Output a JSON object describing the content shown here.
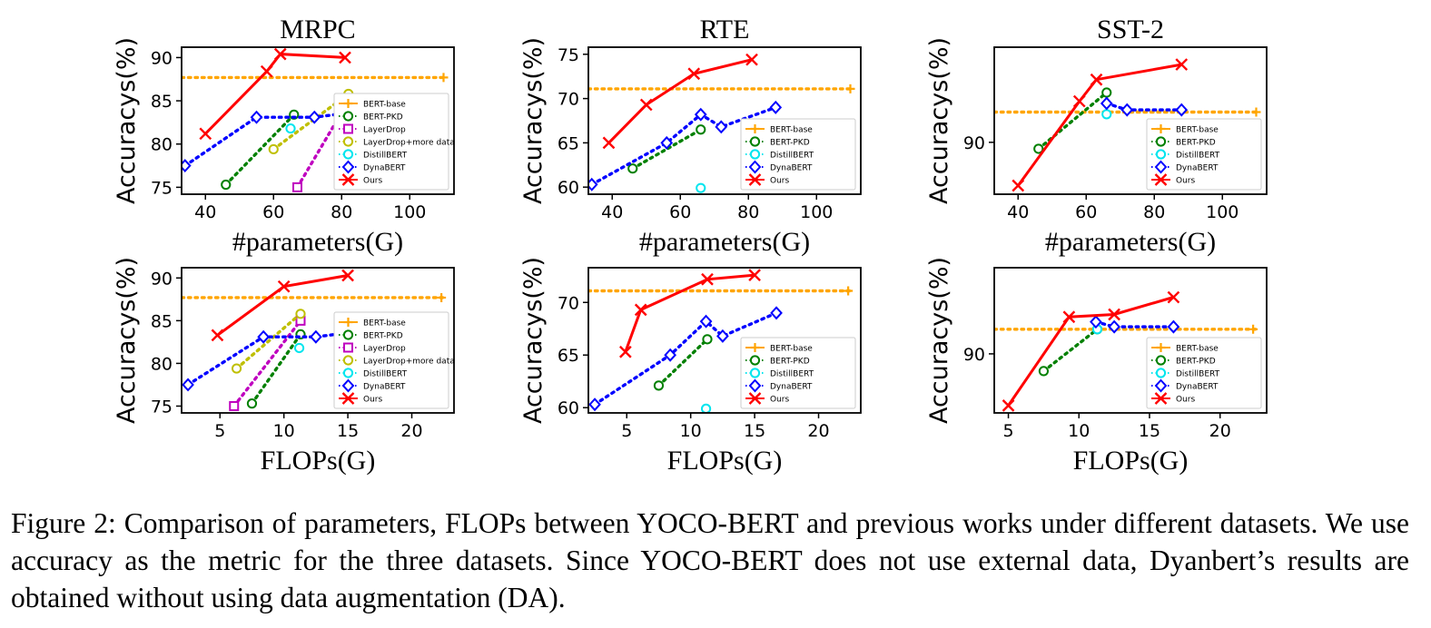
{
  "caption": "Figure 2: Comparison of parameters, FLOPs between YOCO-BERT and previous works under different datasets. We use accuracy as the metric for the three datasets. Since YOCO-BERT does not use external data, Dyanbert’s results are obtained without using data augmentation (DA).",
  "colors": {
    "BERT-base": "#ffa500",
    "BERT-PKD": "#008000",
    "LayerDrop": "#bf00bf",
    "LayerDrop+more data": "#bfbf00",
    "DistillBERT": "#00e5ee",
    "DynaBERT": "#0000ff",
    "Ours": "#ff0000"
  },
  "markers": {
    "BERT-base": "plus-marker",
    "BERT-PKD": "circle-marker",
    "LayerDrop": "square-marker",
    "LayerDrop+more data": "circle-marker",
    "DistillBERT": "circle-marker",
    "DynaBERT": "diamond-marker",
    "Ours": "x-marker"
  },
  "chart_data": [
    {
      "type": "line",
      "title": "MRPC",
      "xlabel": "#parameters(G)",
      "ylabel": "Accuracys(%)",
      "xlim": [
        33,
        113
      ],
      "ylim": [
        74.2,
        91.2
      ],
      "xticks": [
        40,
        60,
        80,
        100
      ],
      "yticks": [
        75,
        80,
        85,
        90
      ],
      "grid": false,
      "legend": "lower-right",
      "series": [
        {
          "name": "BERT-base",
          "x": [
            33,
            111
          ],
          "y": [
            87.7,
            87.7
          ]
        },
        {
          "name": "BERT-PKD",
          "x": [
            46,
            66
          ],
          "y": [
            75.3,
            83.4
          ]
        },
        {
          "name": "LayerDrop",
          "x": [
            67,
            82
          ],
          "y": [
            75.0,
            85.0
          ]
        },
        {
          "name": "LayerDrop+more data",
          "x": [
            60,
            82
          ],
          "y": [
            79.4,
            85.8
          ]
        },
        {
          "name": "DistillBERT",
          "x": [
            65
          ],
          "y": [
            81.8
          ]
        },
        {
          "name": "DynaBERT",
          "x": [
            34,
            55,
            72,
            88
          ],
          "y": [
            77.5,
            83.1,
            83.1,
            83.9
          ]
        },
        {
          "name": "Ours",
          "x": [
            40,
            58,
            62,
            81
          ],
          "y": [
            81.2,
            88.4,
            90.4,
            90.0
          ]
        }
      ]
    },
    {
      "type": "line",
      "title": "RTE",
      "xlabel": "#parameters(G)",
      "ylabel": "Accuracys(%)",
      "xlim": [
        33,
        113
      ],
      "ylim": [
        59.2,
        75.8
      ],
      "xticks": [
        40,
        60,
        80,
        100
      ],
      "yticks": [
        60,
        65,
        70,
        75
      ],
      "grid": false,
      "legend": "lower-right",
      "series": [
        {
          "name": "BERT-base",
          "x": [
            33,
            111
          ],
          "y": [
            71.1,
            71.1
          ]
        },
        {
          "name": "BERT-PKD",
          "x": [
            46,
            66
          ],
          "y": [
            62.1,
            66.5
          ]
        },
        {
          "name": "DistillBERT",
          "x": [
            66
          ],
          "y": [
            59.9
          ]
        },
        {
          "name": "DynaBERT",
          "x": [
            34,
            56,
            66,
            72,
            88
          ],
          "y": [
            60.3,
            65.0,
            68.2,
            66.8,
            69.0
          ]
        },
        {
          "name": "Ours",
          "x": [
            39,
            50,
            64,
            81
          ],
          "y": [
            65.0,
            69.3,
            72.8,
            74.4
          ]
        }
      ]
    },
    {
      "type": "line",
      "title": "SST-2",
      "xlabel": "#parameters(G)",
      "ylabel": "Accuracys(%)",
      "xlim": [
        33,
        113
      ],
      "ylim": [
        87.6,
        94.4
      ],
      "xticks": [
        40,
        60,
        80,
        100
      ],
      "yticks": [
        90
      ],
      "grid": false,
      "legend": "lower-right",
      "series": [
        {
          "name": "BERT-base",
          "x": [
            33,
            111
          ],
          "y": [
            91.4,
            91.4
          ]
        },
        {
          "name": "BERT-PKD",
          "x": [
            46,
            66
          ],
          "y": [
            89.7,
            92.3
          ]
        },
        {
          "name": "DistillBERT",
          "x": [
            66
          ],
          "y": [
            91.3
          ]
        },
        {
          "name": "DynaBERT",
          "x": [
            66,
            72,
            88
          ],
          "y": [
            91.8,
            91.5,
            91.5
          ]
        },
        {
          "name": "Ours",
          "x": [
            40,
            58,
            63,
            88
          ],
          "y": [
            88.0,
            91.9,
            92.9,
            93.6
          ]
        }
      ]
    },
    {
      "type": "line",
      "title": "",
      "xlabel": "FLOPs(G)",
      "ylabel": "Accuracys(%)",
      "xlim": [
        2,
        23.3
      ],
      "ylim": [
        74.2,
        91.2
      ],
      "xticks": [
        5,
        10,
        15,
        20
      ],
      "yticks": [
        75,
        80,
        85,
        90
      ],
      "grid": false,
      "legend": "lower-right",
      "series": [
        {
          "name": "BERT-base",
          "x": [
            2,
            22.6
          ],
          "y": [
            87.7,
            87.7
          ]
        },
        {
          "name": "BERT-PKD",
          "x": [
            7.5,
            11.3
          ],
          "y": [
            75.3,
            83.4
          ]
        },
        {
          "name": "LayerDrop",
          "x": [
            6.1,
            11.3
          ],
          "y": [
            75.0,
            85.0
          ]
        },
        {
          "name": "LayerDrop+more data",
          "x": [
            6.3,
            11.3
          ],
          "y": [
            79.4,
            85.8
          ]
        },
        {
          "name": "DistillBERT",
          "x": [
            11.2
          ],
          "y": [
            81.8
          ]
        },
        {
          "name": "DynaBERT",
          "x": [
            2.5,
            8.4,
            12.5,
            16.7
          ],
          "y": [
            77.5,
            83.1,
            83.1,
            83.9
          ]
        },
        {
          "name": "Ours",
          "x": [
            4.8,
            10.0,
            15.0
          ],
          "y": [
            83.3,
            89.0,
            90.3
          ]
        }
      ]
    },
    {
      "type": "line",
      "title": "",
      "xlabel": "FLOPs(G)",
      "ylabel": "Accuracys(%)",
      "xlim": [
        2,
        23.3
      ],
      "ylim": [
        59.5,
        73.3
      ],
      "xticks": [
        5,
        10,
        15,
        20
      ],
      "yticks": [
        60,
        65,
        70
      ],
      "grid": false,
      "legend": "lower-right",
      "series": [
        {
          "name": "BERT-base",
          "x": [
            2,
            22.6
          ],
          "y": [
            71.1,
            71.1
          ]
        },
        {
          "name": "BERT-PKD",
          "x": [
            7.5,
            11.3
          ],
          "y": [
            62.1,
            66.5
          ]
        },
        {
          "name": "DistillBERT",
          "x": [
            11.2
          ],
          "y": [
            59.9
          ]
        },
        {
          "name": "DynaBERT",
          "x": [
            2.5,
            8.4,
            11.2,
            12.5,
            16.7
          ],
          "y": [
            60.3,
            65.0,
            68.2,
            66.8,
            69.0
          ]
        },
        {
          "name": "Ours",
          "x": [
            4.9,
            6.1,
            11.3,
            15.0
          ],
          "y": [
            65.3,
            69.3,
            72.2,
            72.6
          ]
        }
      ]
    },
    {
      "type": "line",
      "title": "",
      "xlabel": "FLOPs(G)",
      "ylabel": "Accuracys(%)",
      "xlim": [
        4,
        23.3
      ],
      "ylim": [
        87.6,
        93.5
      ],
      "xticks": [
        5,
        10,
        15,
        20
      ],
      "yticks": [
        90
      ],
      "grid": false,
      "legend": "lower-right",
      "series": [
        {
          "name": "BERT-base",
          "x": [
            4,
            22.6
          ],
          "y": [
            91.0,
            91.0
          ]
        },
        {
          "name": "BERT-PKD",
          "x": [
            7.5,
            11.3
          ],
          "y": [
            89.3,
            91.0
          ]
        },
        {
          "name": "DistillBERT",
          "x": [
            11.3
          ],
          "y": [
            91.0
          ]
        },
        {
          "name": "DynaBERT",
          "x": [
            11.2,
            12.5,
            16.7
          ],
          "y": [
            91.3,
            91.1,
            91.1
          ]
        },
        {
          "name": "Ours",
          "x": [
            5.0,
            9.3,
            12.5,
            16.7
          ],
          "y": [
            87.9,
            91.5,
            91.6,
            92.3
          ]
        }
      ]
    }
  ]
}
